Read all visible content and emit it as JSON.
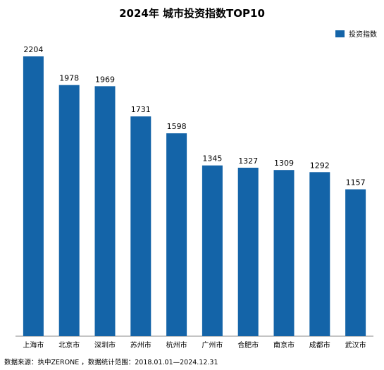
{
  "chart_data": {
    "type": "bar",
    "title": "2024年 城市投资指数TOP10",
    "categories": [
      "上海市",
      "北京市",
      "深圳市",
      "苏州市",
      "杭州市",
      "广州市",
      "合肥市",
      "南京市",
      "成都市",
      "武汉市"
    ],
    "series": [
      {
        "name": "投资指数",
        "values": [
          2204,
          1978,
          1969,
          1731,
          1598,
          1345,
          1327,
          1309,
          1292,
          1157
        ]
      }
    ],
    "ylim": [
      0,
      2204
    ],
    "grid": false,
    "legend_position": "top-right",
    "bar_color": "#1464A8"
  },
  "footer": {
    "source": "数据来源：执中ZERONE ，数据统计范围：2018.01.01—2024.12.31"
  }
}
